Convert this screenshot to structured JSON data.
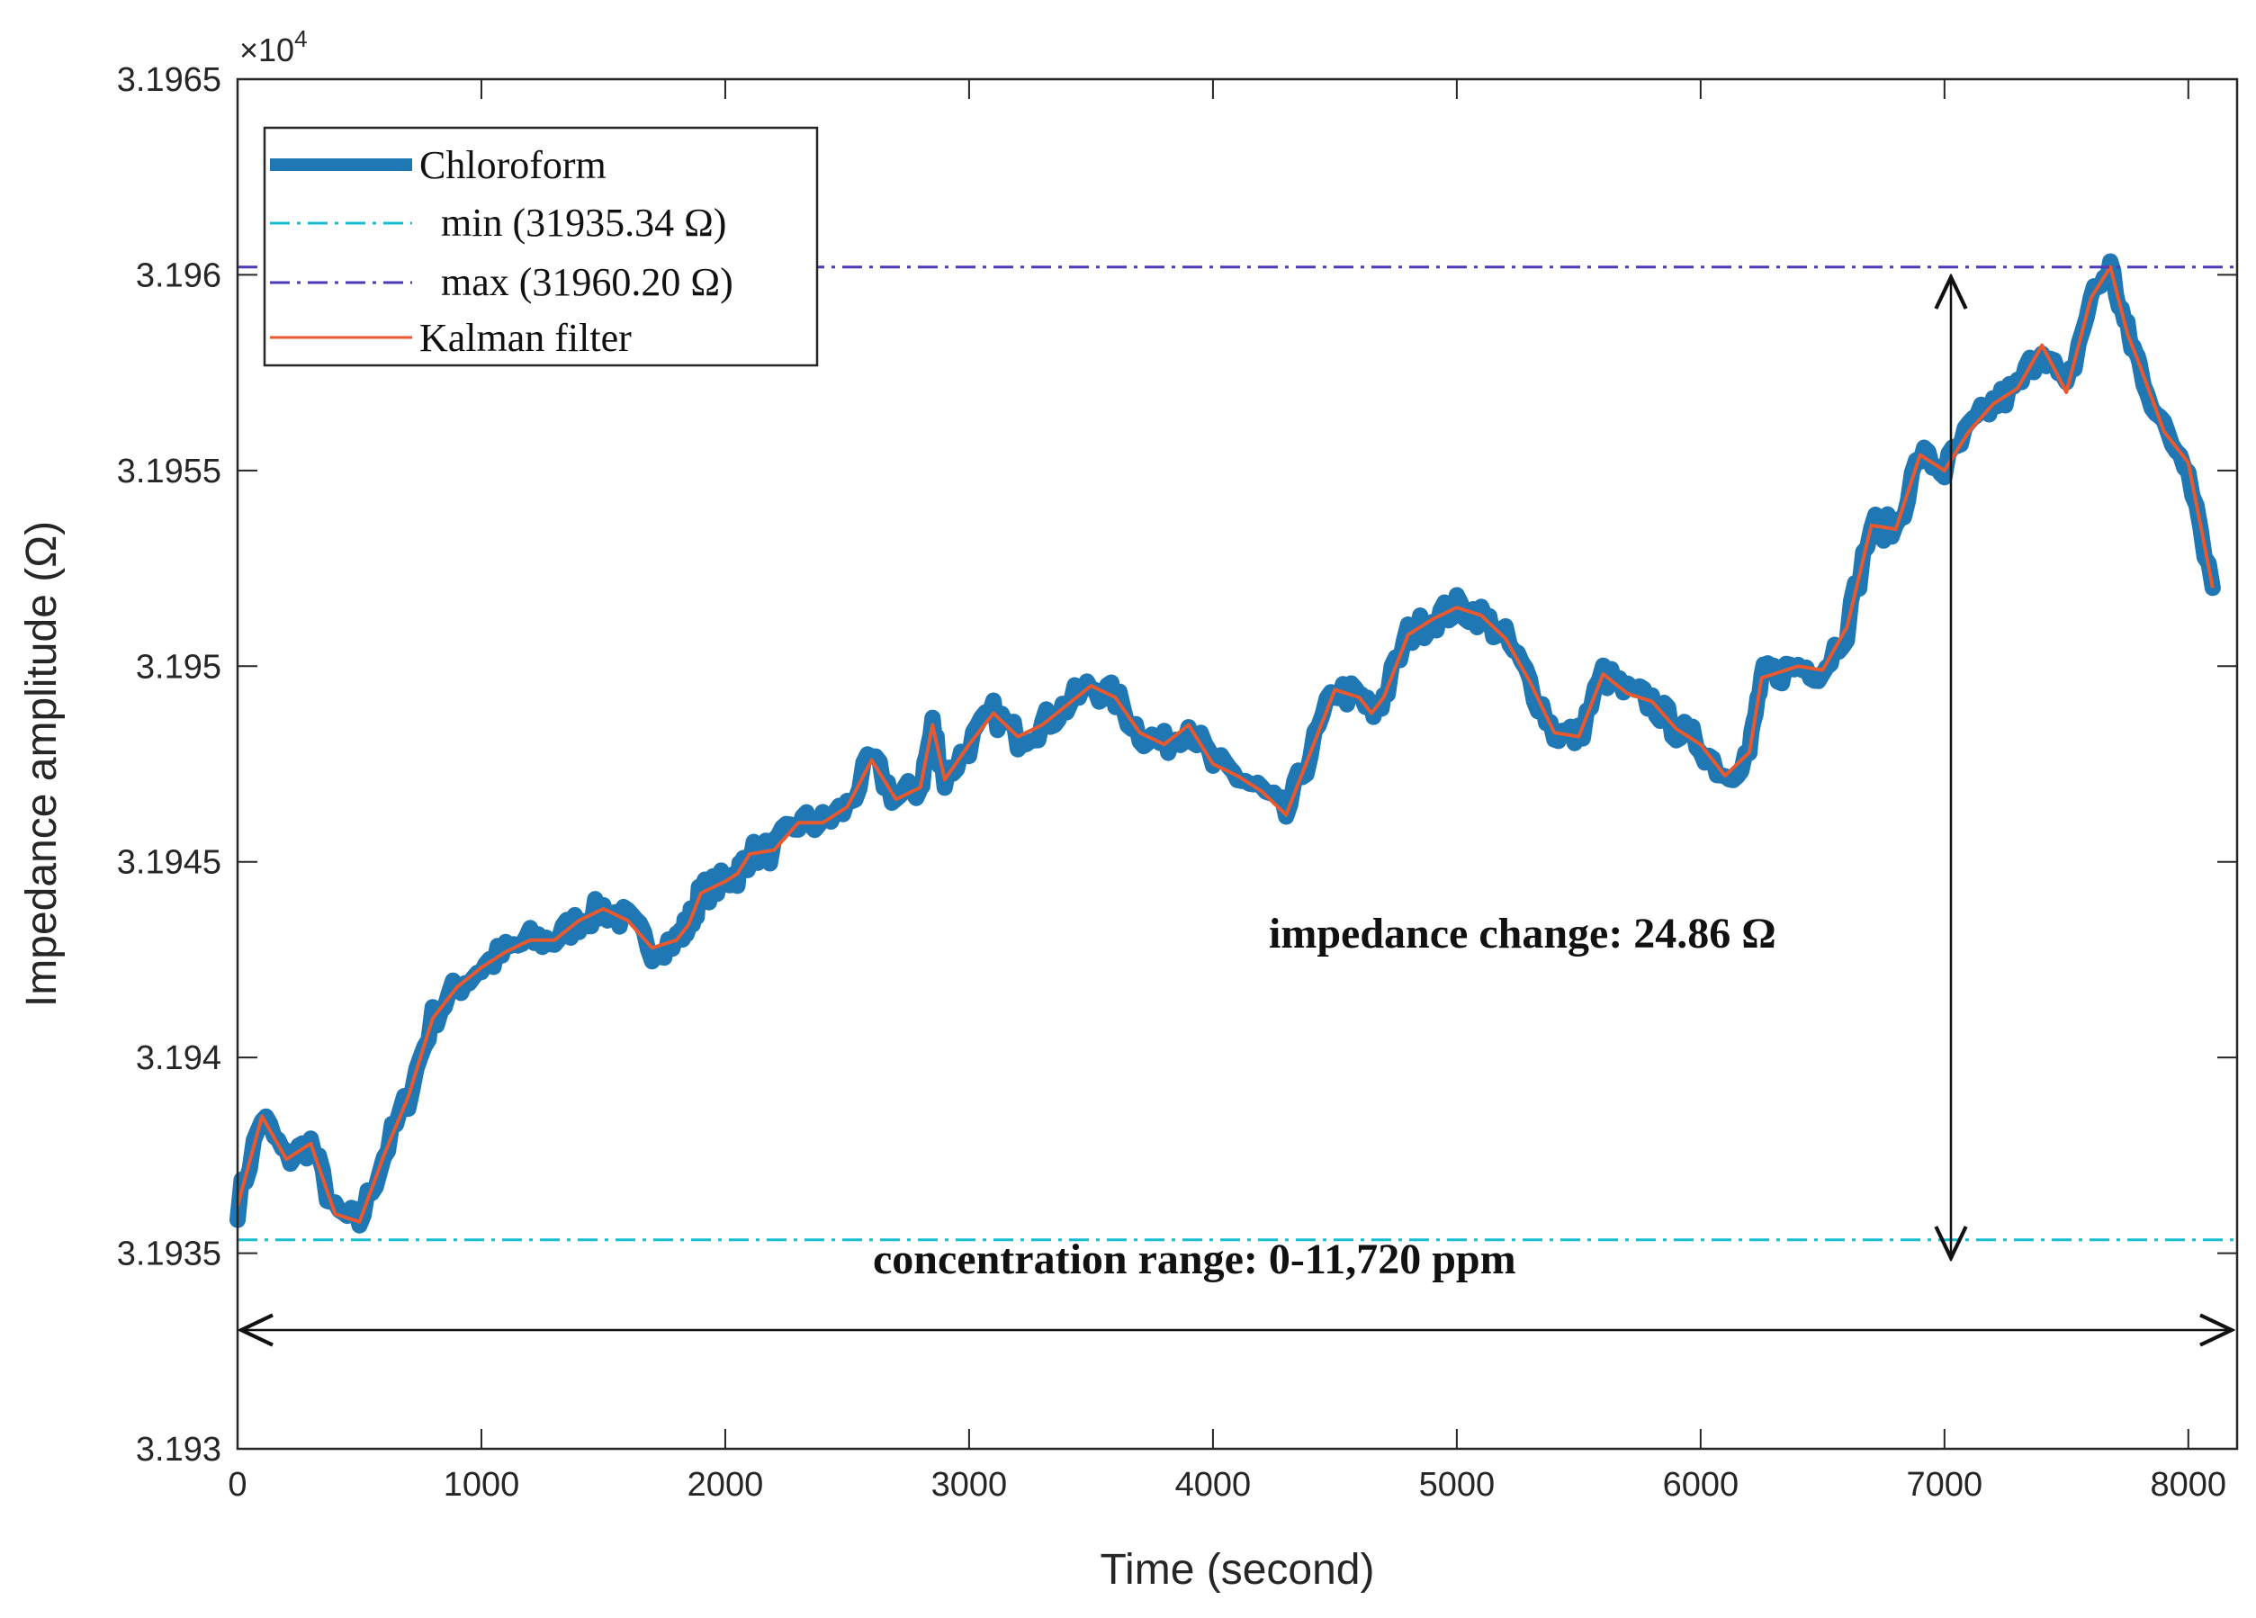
{
  "chart_data": {
    "type": "line",
    "title": "",
    "xlabel": "Time (second)",
    "ylabel": "Impedance amplitude (Ω)",
    "xlim": [
      0,
      8200
    ],
    "ylim": [
      31930,
      31965
    ],
    "y_exponent_label": "×10",
    "y_exponent_power": "4",
    "x_ticks": [
      0,
      1000,
      2000,
      3000,
      4000,
      5000,
      6000,
      7000,
      8000
    ],
    "x_tick_labels": [
      "0",
      "1000",
      "2000",
      "3000",
      "4000",
      "5000",
      "6000",
      "7000",
      "8000"
    ],
    "y_ticks": [
      31930,
      31935,
      31940,
      31945,
      31950,
      31955,
      31960,
      31965
    ],
    "y_tick_labels": [
      "3.193",
      "3.1935",
      "3.194",
      "3.1945",
      "3.195",
      "3.1955",
      "3.196",
      "3.1965"
    ],
    "legend_position": "top-left",
    "colors": {
      "chloroform": "#1f77b4",
      "kalman": "#e8592f",
      "min": "#17becf",
      "max": "#4b3bb8"
    },
    "series": [
      {
        "name": "Chloroform",
        "style": "thick-line",
        "x": [
          0,
          100,
          200,
          300,
          400,
          500,
          600,
          700,
          800,
          900,
          1000,
          1100,
          1200,
          1300,
          1400,
          1500,
          1600,
          1700,
          1800,
          1850,
          1900,
          2000,
          2050,
          2100,
          2200,
          2300,
          2400,
          2500,
          2600,
          2700,
          2800,
          2850,
          2900,
          3000,
          3100,
          3200,
          3300,
          3400,
          3500,
          3600,
          3700,
          3800,
          3900,
          4000,
          4100,
          4200,
          4300,
          4400,
          4500,
          4600,
          4650,
          4700,
          4800,
          4900,
          5000,
          5100,
          5200,
          5300,
          5400,
          5500,
          5600,
          5700,
          5800,
          5900,
          6000,
          6100,
          6200,
          6250,
          6300,
          6400,
          6500,
          6600,
          6700,
          6800,
          6900,
          7000,
          7100,
          7200,
          7300,
          7400,
          7500,
          7600,
          7680,
          7750,
          7800,
          7900,
          8000,
          8100
        ],
        "values": [
          31936.2,
          31938.5,
          31937.4,
          31937.8,
          31936.0,
          31935.8,
          31937.5,
          31939.0,
          31941.0,
          31941.8,
          31942.3,
          31942.7,
          31943.0,
          31943.0,
          31943.5,
          31943.8,
          31943.5,
          31942.8,
          31943.0,
          31943.4,
          31944.2,
          31944.5,
          31944.7,
          31945.2,
          31945.3,
          31946.0,
          31946.0,
          31946.4,
          31947.6,
          31946.6,
          31946.9,
          31948.5,
          31947.1,
          31948.0,
          31948.8,
          31948.2,
          31948.5,
          31949.0,
          31949.5,
          31949.2,
          31948.3,
          31948.0,
          31948.5,
          31947.5,
          31947.2,
          31946.8,
          31946.2,
          31947.8,
          31949.4,
          31949.2,
          31948.8,
          31949.2,
          31950.8,
          31951.2,
          31951.5,
          31951.3,
          31950.7,
          31949.6,
          31948.3,
          31948.2,
          31949.8,
          31949.3,
          31949.1,
          31948.4,
          31948.0,
          31947.2,
          31947.8,
          31949.7,
          31949.8,
          31950.0,
          31949.9,
          31951.0,
          31953.6,
          31953.5,
          31955.4,
          31955.0,
          31956.0,
          31956.7,
          31957.1,
          31958.2,
          31957.0,
          31959.4,
          31960.2,
          31958.5,
          31957.7,
          31956.0,
          31955.2,
          31952.0
        ]
      },
      {
        "name": "min  (31935.34 Ω)",
        "value": 31935.34
      },
      {
        "name": "max (31960.20 Ω)",
        "value": 31960.2
      },
      {
        "name": "Kalman filter",
        "style": "thin-line"
      }
    ],
    "annotations": {
      "impedance_change": "impedance change: 24.86 Ω",
      "concentration_range": "concentration range: 0-11,720 ppm"
    }
  }
}
